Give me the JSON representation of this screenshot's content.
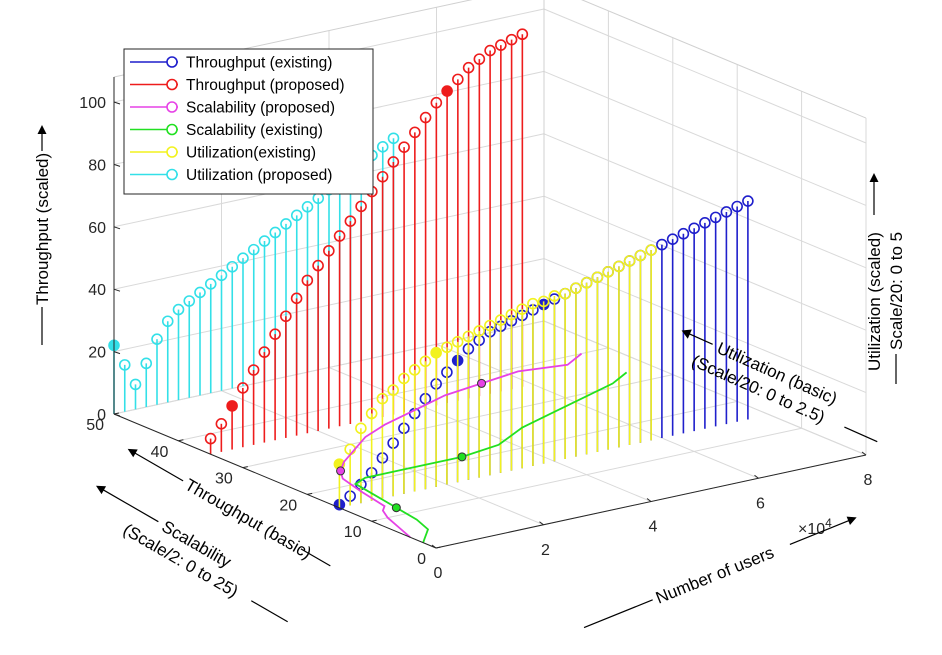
{
  "chart_data": {
    "type": "stem3d",
    "title": "",
    "colors": {
      "throughput_existing": "#1f1fcc",
      "throughput_proposed": "#ee1c1c",
      "scalability_proposed": "#e642e6",
      "scalability_existing": "#22e022",
      "utilization_existing": "#f2f21e",
      "utilization_proposed": "#33e0e8"
    },
    "legend": [
      {
        "label": "Throughput (existing)",
        "key": "throughput_existing"
      },
      {
        "label": "Throughput (proposed)",
        "key": "throughput_proposed"
      },
      {
        "label": "Scalability (proposed)",
        "key": "scalability_proposed"
      },
      {
        "label": "Scalability (existing)",
        "key": "scalability_existing"
      },
      {
        "label": "Utilization(existing)",
        "key": "utilization_existing"
      },
      {
        "label": "Utilization (proposed)",
        "key": "utilization_proposed"
      }
    ],
    "axes": {
      "x": {
        "label": "Number of users",
        "range": [
          0,
          80000
        ],
        "ticks": [
          0,
          20000,
          40000,
          60000,
          80000
        ],
        "tick_labels": [
          "0",
          "2",
          "4",
          "6",
          "8"
        ],
        "multiplier": "×10",
        "multiplier_exp": "4"
      },
      "y": {
        "label": "Throughput (basic)",
        "range": [
          0,
          50
        ],
        "ticks": [
          0,
          10,
          20,
          30,
          40,
          50
        ],
        "tick_labels": [
          "0",
          "10",
          "20",
          "30",
          "40",
          "50"
        ]
      },
      "y_extra_label": {
        "line1": "Scalability",
        "line2": "(Scale/2: 0 to 25)"
      },
      "z": {
        "label": "Throughput (scaled)",
        "range": [
          0,
          100
        ],
        "ticks": [
          0,
          20,
          40,
          60,
          80,
          100
        ],
        "tick_labels": [
          "0",
          "20",
          "40",
          "60",
          "80",
          "100"
        ]
      },
      "z_extra_label": {
        "line1": "Utilization (scaled)",
        "line2": "Scale/20: 0 to 5"
      },
      "x_extra_label": {
        "line1": "Utilization (basic)",
        "line2": "(Scale/20: 0 to 2.5)"
      }
    },
    "series": [
      {
        "name": "Throughput (existing)",
        "key": "throughput_existing",
        "plane_y": 15,
        "user_step": 2000,
        "values": [
          1,
          3,
          6,
          9,
          13,
          17,
          21,
          25,
          29,
          33,
          36,
          39,
          42,
          44,
          46,
          47,
          48,
          49,
          50,
          51,
          52,
          53,
          54,
          55,
          56,
          57,
          58,
          59,
          60,
          61,
          62,
          63,
          64,
          65,
          66,
          67,
          68,
          69,
          70
        ],
        "highlights": [
          0,
          11,
          19
        ]
      },
      {
        "name": "Throughput (proposed)",
        "key": "throughput_proposed",
        "plane_y": 35,
        "user_step": 2000,
        "values": [
          5,
          9,
          14,
          19,
          24,
          29,
          34,
          39,
          44,
          49,
          53,
          57,
          61,
          65,
          69,
          73,
          77,
          81,
          85,
          89,
          93,
          97,
          100,
          103,
          106,
          108,
          110,
          111,
          112,
          113
        ],
        "highlights": [
          2,
          22
        ]
      },
      {
        "name": "Utilization(existing)",
        "key": "utilization_existing",
        "plane_y": 15,
        "user_step": 2000,
        "values": [
          14,
          18,
          24,
          28,
          32,
          34,
          37,
          39,
          41,
          43,
          44,
          45,
          46,
          47,
          48,
          49,
          50,
          51,
          52,
          52,
          53,
          53,
          54,
          55,
          56,
          57,
          58,
          59,
          60,
          61
        ],
        "highlights": [
          0,
          9
        ]
      },
      {
        "name": "Utilization (proposed)",
        "key": "utilization_proposed",
        "plane_y": 50,
        "user_step": 2000,
        "values": [
          22,
          15,
          8,
          14,
          21,
          26,
          29,
          31,
          33,
          35,
          37,
          39,
          41,
          43,
          45,
          47,
          49,
          51,
          53,
          55,
          57,
          59,
          61,
          63,
          65,
          67,
          69
        ],
        "highlights": [
          0,
          20
        ]
      },
      {
        "name": "Scalability (proposed)",
        "key": "scalability_proposed",
        "type": "line3d_floor",
        "x": [
          0,
          1500,
          3000,
          4500,
          6000,
          7500,
          9000,
          11000,
          14000,
          18000,
          24000,
          30000,
          38000,
          46000,
          54000,
          62000,
          70000,
          75000
        ],
        "y": [
          4,
          7,
          10,
          12,
          13,
          18,
          22,
          24,
          26,
          28,
          31,
          33,
          35,
          37,
          38,
          39,
          38,
          40
        ],
        "highlights": [
          7,
          14
        ]
      },
      {
        "name": "Scalability (existing)",
        "key": "scalability_existing",
        "type": "line3d_floor",
        "x": [
          0,
          1500,
          3000,
          4500,
          6000,
          7000,
          8000,
          9000,
          12000,
          16000,
          22000,
          30000,
          38000,
          46000,
          54000,
          62000,
          70000,
          75000
        ],
        "y": [
          2,
          3,
          4,
          5,
          8,
          12,
          16,
          20,
          21,
          21,
          21,
          21,
          22,
          25,
          27,
          29,
          31,
          33
        ],
        "highlights": [
          5,
          11
        ]
      }
    ]
  }
}
